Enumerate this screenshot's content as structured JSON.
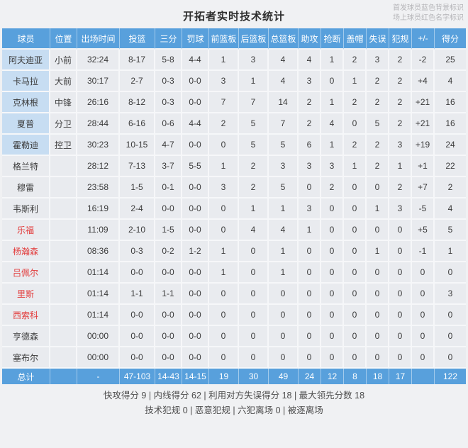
{
  "title": "开拓者实时技术统计",
  "legend": {
    "line1": "首发球员蓝色背景标识",
    "line2": "场上球员红色名字标识"
  },
  "colors": {
    "header_blue": "#58a0dc",
    "starter_cell_blue": "#c7ddf2",
    "oncourt_name_red": "#e23b3b",
    "row_background": "#e9ebef"
  },
  "columns": [
    "球员",
    "位置",
    "出场时间",
    "投篮",
    "三分",
    "罚球",
    "前篮板",
    "后篮板",
    "总篮板",
    "助攻",
    "抢断",
    "盖帽",
    "失误",
    "犯规",
    "+/-",
    "得分"
  ],
  "players": [
    {
      "name": "阿夫迪亚",
      "starter": true,
      "oncourt": false,
      "pos": "小前",
      "time": "32:24",
      "fg": "8-17",
      "three": "5-8",
      "ft": "4-4",
      "oreb": "1",
      "dreb": "3",
      "treb": "4",
      "ast": "4",
      "stl": "1",
      "blk": "2",
      "to": "3",
      "pf": "2",
      "pm": "-2",
      "pts": "25"
    },
    {
      "name": "卡马拉",
      "starter": true,
      "oncourt": false,
      "pos": "大前",
      "time": "30:17",
      "fg": "2-7",
      "three": "0-3",
      "ft": "0-0",
      "oreb": "3",
      "dreb": "1",
      "treb": "4",
      "ast": "3",
      "stl": "0",
      "blk": "1",
      "to": "2",
      "pf": "2",
      "pm": "+4",
      "pts": "4"
    },
    {
      "name": "克林根",
      "starter": true,
      "oncourt": false,
      "pos": "中锋",
      "time": "26:16",
      "fg": "8-12",
      "three": "0-3",
      "ft": "0-0",
      "oreb": "7",
      "dreb": "7",
      "treb": "14",
      "ast": "2",
      "stl": "1",
      "blk": "2",
      "to": "2",
      "pf": "2",
      "pm": "+21",
      "pts": "16"
    },
    {
      "name": "夏普",
      "starter": true,
      "oncourt": false,
      "pos": "分卫",
      "time": "28:44",
      "fg": "6-16",
      "three": "0-6",
      "ft": "4-4",
      "oreb": "2",
      "dreb": "5",
      "treb": "7",
      "ast": "2",
      "stl": "4",
      "blk": "0",
      "to": "5",
      "pf": "2",
      "pm": "+21",
      "pts": "16"
    },
    {
      "name": "霍勒迪",
      "starter": true,
      "oncourt": false,
      "pos": "控卫",
      "time": "30:23",
      "fg": "10-15",
      "three": "4-7",
      "ft": "0-0",
      "oreb": "0",
      "dreb": "5",
      "treb": "5",
      "ast": "6",
      "stl": "1",
      "blk": "2",
      "to": "2",
      "pf": "3",
      "pm": "+19",
      "pts": "24"
    },
    {
      "name": "格兰特",
      "starter": false,
      "oncourt": false,
      "pos": "",
      "time": "28:12",
      "fg": "7-13",
      "three": "3-7",
      "ft": "5-5",
      "oreb": "1",
      "dreb": "2",
      "treb": "3",
      "ast": "3",
      "stl": "3",
      "blk": "1",
      "to": "2",
      "pf": "1",
      "pm": "+1",
      "pts": "22"
    },
    {
      "name": "穆雷",
      "starter": false,
      "oncourt": false,
      "pos": "",
      "time": "23:58",
      "fg": "1-5",
      "three": "0-1",
      "ft": "0-0",
      "oreb": "3",
      "dreb": "2",
      "treb": "5",
      "ast": "0",
      "stl": "2",
      "blk": "0",
      "to": "0",
      "pf": "2",
      "pm": "+7",
      "pts": "2"
    },
    {
      "name": "韦斯利",
      "starter": false,
      "oncourt": false,
      "pos": "",
      "time": "16:19",
      "fg": "2-4",
      "three": "0-0",
      "ft": "0-0",
      "oreb": "0",
      "dreb": "1",
      "treb": "1",
      "ast": "3",
      "stl": "0",
      "blk": "0",
      "to": "1",
      "pf": "3",
      "pm": "-5",
      "pts": "4"
    },
    {
      "name": "乐福",
      "starter": false,
      "oncourt": true,
      "pos": "",
      "time": "11:09",
      "fg": "2-10",
      "three": "1-5",
      "ft": "0-0",
      "oreb": "0",
      "dreb": "4",
      "treb": "4",
      "ast": "1",
      "stl": "0",
      "blk": "0",
      "to": "0",
      "pf": "0",
      "pm": "+5",
      "pts": "5"
    },
    {
      "name": "杨瀚森",
      "starter": false,
      "oncourt": true,
      "pos": "",
      "time": "08:36",
      "fg": "0-3",
      "three": "0-2",
      "ft": "1-2",
      "oreb": "1",
      "dreb": "0",
      "treb": "1",
      "ast": "0",
      "stl": "0",
      "blk": "0",
      "to": "1",
      "pf": "0",
      "pm": "-1",
      "pts": "1"
    },
    {
      "name": "吕佩尔",
      "starter": false,
      "oncourt": true,
      "pos": "",
      "time": "01:14",
      "fg": "0-0",
      "three": "0-0",
      "ft": "0-0",
      "oreb": "1",
      "dreb": "0",
      "treb": "1",
      "ast": "0",
      "stl": "0",
      "blk": "0",
      "to": "0",
      "pf": "0",
      "pm": "0",
      "pts": "0"
    },
    {
      "name": "里斯",
      "starter": false,
      "oncourt": true,
      "pos": "",
      "time": "01:14",
      "fg": "1-1",
      "three": "1-1",
      "ft": "0-0",
      "oreb": "0",
      "dreb": "0",
      "treb": "0",
      "ast": "0",
      "stl": "0",
      "blk": "0",
      "to": "0",
      "pf": "0",
      "pm": "0",
      "pts": "3"
    },
    {
      "name": "西索科",
      "starter": false,
      "oncourt": true,
      "pos": "",
      "time": "01:14",
      "fg": "0-0",
      "three": "0-0",
      "ft": "0-0",
      "oreb": "0",
      "dreb": "0",
      "treb": "0",
      "ast": "0",
      "stl": "0",
      "blk": "0",
      "to": "0",
      "pf": "0",
      "pm": "0",
      "pts": "0"
    },
    {
      "name": "亨德森",
      "starter": false,
      "oncourt": false,
      "pos": "",
      "time": "00:00",
      "fg": "0-0",
      "three": "0-0",
      "ft": "0-0",
      "oreb": "0",
      "dreb": "0",
      "treb": "0",
      "ast": "0",
      "stl": "0",
      "blk": "0",
      "to": "0",
      "pf": "0",
      "pm": "0",
      "pts": "0"
    },
    {
      "name": "塞布尔",
      "starter": false,
      "oncourt": false,
      "pos": "",
      "time": "00:00",
      "fg": "0-0",
      "three": "0-0",
      "ft": "0-0",
      "oreb": "0",
      "dreb": "0",
      "treb": "0",
      "ast": "0",
      "stl": "0",
      "blk": "0",
      "to": "0",
      "pf": "0",
      "pm": "0",
      "pts": "0"
    }
  ],
  "totals": {
    "name": "总计",
    "pos": "",
    "time": "-",
    "fg": "47-103",
    "three": "14-43",
    "ft": "14-15",
    "oreb": "19",
    "dreb": "30",
    "treb": "49",
    "ast": "24",
    "stl": "12",
    "blk": "8",
    "to": "18",
    "pf": "17",
    "pm": "",
    "pts": "122"
  },
  "footer": {
    "line1": "快攻得分 9 | 内线得分 62 | 利用对方失误得分 18 | 最大领先分数 18",
    "line2": "技术犯规 0 | 恶意犯规  | 六犯离场 0 | 被逐离场"
  }
}
